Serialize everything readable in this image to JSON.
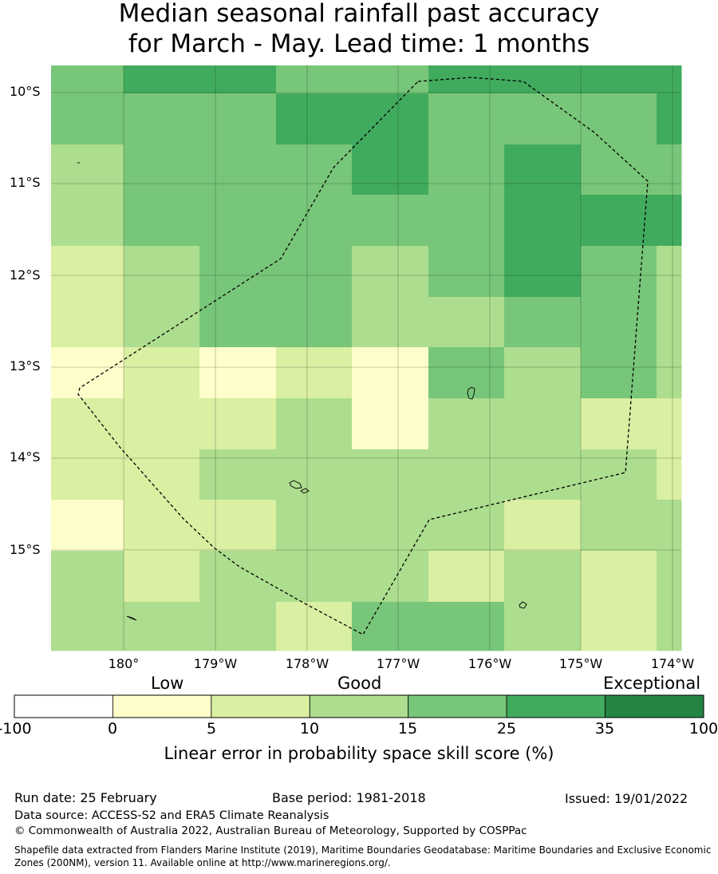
{
  "title": {
    "line1": "Median seasonal rainfall past accuracy",
    "line2": "for March - May. Lead time: 1 months"
  },
  "map": {
    "latitude_labels": [
      "10°S",
      "11°S",
      "12°S",
      "13°S",
      "14°S",
      "15°S"
    ],
    "longitude_labels": [
      "180°",
      "179°W",
      "178°W",
      "177°W",
      "176°W",
      "175°W",
      "174°W"
    ],
    "grid_colors": [
      [
        "c3",
        "c4",
        "c4",
        "c3",
        "c3",
        "c4",
        "c4",
        "c4",
        "c4"
      ],
      [
        "c3",
        "c3",
        "c3",
        "c4",
        "c4",
        "c3",
        "c3",
        "c3",
        "c4"
      ],
      [
        "c2",
        "c3",
        "c3",
        "c3",
        "c4",
        "c3",
        "c4",
        "c3",
        "c3"
      ],
      [
        "c2",
        "c3",
        "c3",
        "c3",
        "c3",
        "c3",
        "c4",
        "c4",
        "c4"
      ],
      [
        "c1",
        "c2",
        "c3",
        "c3",
        "c2",
        "c3",
        "c4",
        "c3",
        "c2"
      ],
      [
        "c1",
        "c2",
        "c3",
        "c3",
        "c2",
        "c2",
        "c3",
        "c3",
        "c2"
      ],
      [
        "c0",
        "c1",
        "c0",
        "c1",
        "c0",
        "c3",
        "c2",
        "c3",
        "c2"
      ],
      [
        "c1",
        "c1",
        "c1",
        "c2",
        "c0",
        "c2",
        "c2",
        "c1",
        "c1"
      ],
      [
        "c1",
        "c1",
        "c2",
        "c2",
        "c2",
        "c2",
        "c2",
        "c2",
        "c1"
      ],
      [
        "c0",
        "c1",
        "c1",
        "c2",
        "c2",
        "c2",
        "c1",
        "c2",
        "c2"
      ],
      [
        "c2",
        "c1",
        "c2",
        "c2",
        "c2",
        "c1",
        "c2",
        "c1",
        "c2"
      ],
      [
        "c2",
        "c2",
        "c2",
        "c1",
        "c3",
        "c3",
        "c2",
        "c1",
        "c2"
      ]
    ]
  },
  "colors": {
    "c0": "#fefecb",
    "c1": "#d9efa2",
    "c2": "#addd8e",
    "c3": "#78c679",
    "c4": "#41ab5d",
    "c5": "#238443",
    "neg": "#ffffff"
  },
  "colorbar": {
    "category_low": "Low",
    "category_good": "Good",
    "category_exceptional": "Exceptional",
    "ticks": [
      "-100",
      "0",
      "5",
      "10",
      "15",
      "25",
      "35",
      "100"
    ],
    "label": "Linear error in probability space skill score (%)"
  },
  "footer": {
    "run_date": "Run date: 25 February",
    "base_period": "Base period: 1981-2018",
    "issued": "Issued: 19/01/2022",
    "data_source": "Data source: ACCESS-S2 and ERA5 Climate Reanalysis",
    "copyright": "© Commonwealth of Australia 2022, Australian Bureau of Meteorology, Supported by COSPPac",
    "shapefile_note": "Shapefile data extracted from Flanders Marine Institute (2019), Maritime Boundaries Geodatabase: Maritime Boundaries and Exclusive Economic Zones (200NM), version 11. Available online at http://www.marineregions.org/."
  }
}
